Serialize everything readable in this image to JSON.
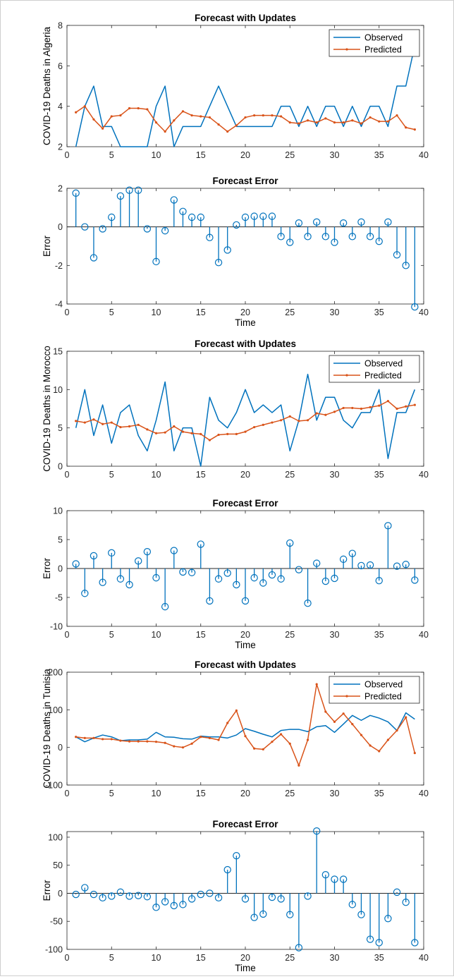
{
  "colors": {
    "observed": "#0072BD",
    "predicted": "#D95319",
    "error": "#0072BD",
    "axis": "#262626"
  },
  "chart_data": [
    {
      "type": "line",
      "title": "Forecast with Updates",
      "ylabel": "COVID-19 Deaths in Algeria",
      "xlabel": "",
      "xlim": [
        0,
        40
      ],
      "ylim": [
        2,
        8
      ],
      "xticks": [
        0,
        5,
        10,
        15,
        20,
        25,
        30,
        35,
        40
      ],
      "yticks": [
        2,
        4,
        6,
        8
      ],
      "legend_position": "top-right",
      "x": [
        1,
        2,
        3,
        4,
        5,
        6,
        7,
        8,
        9,
        10,
        11,
        12,
        13,
        14,
        15,
        16,
        17,
        18,
        19,
        20,
        21,
        22,
        23,
        24,
        25,
        26,
        27,
        28,
        29,
        30,
        31,
        32,
        33,
        34,
        35,
        36,
        37,
        38,
        39
      ],
      "series": [
        {
          "name": "Observed",
          "values": [
            2,
            4,
            5,
            3,
            3,
            2,
            2,
            2,
            2,
            4,
            5,
            2,
            3,
            3,
            3,
            4,
            5,
            4,
            3,
            3,
            3,
            3,
            3,
            4,
            4,
            3,
            4,
            3,
            4,
            4,
            3,
            4,
            3,
            4,
            4,
            3,
            5,
            5,
            7
          ]
        },
        {
          "name": "Predicted",
          "values": [
            3.7,
            4.0,
            3.35,
            2.9,
            3.5,
            3.55,
            3.9,
            3.9,
            3.85,
            3.2,
            2.75,
            3.3,
            3.75,
            3.55,
            3.5,
            3.45,
            3.1,
            2.75,
            3.05,
            3.45,
            3.55,
            3.55,
            3.55,
            3.5,
            3.2,
            3.15,
            3.3,
            3.2,
            3.4,
            3.2,
            3.2,
            3.3,
            3.15,
            3.45,
            3.25,
            3.25,
            3.55,
            2.95,
            2.85
          ]
        }
      ]
    },
    {
      "type": "stem",
      "title": "Forecast Error",
      "ylabel": "Error",
      "xlabel": "Time",
      "xlim": [
        0,
        40
      ],
      "ylim": [
        -4,
        2
      ],
      "xticks": [
        0,
        5,
        10,
        15,
        20,
        25,
        30,
        35,
        40
      ],
      "yticks": [
        -4,
        -2,
        0,
        2
      ],
      "x": [
        1,
        2,
        3,
        4,
        5,
        6,
        7,
        8,
        9,
        10,
        11,
        12,
        13,
        14,
        15,
        16,
        17,
        18,
        19,
        20,
        21,
        22,
        23,
        24,
        25,
        26,
        27,
        28,
        29,
        30,
        31,
        32,
        33,
        34,
        35,
        36,
        37,
        38,
        39
      ],
      "series": [
        {
          "values": [
            1.75,
            0,
            -1.6,
            -0.1,
            0.5,
            1.6,
            1.9,
            1.9,
            -0.1,
            -1.8,
            -0.2,
            1.4,
            0.8,
            0.5,
            0.5,
            -0.55,
            -1.85,
            -1.2,
            0.1,
            0.5,
            0.55,
            0.55,
            0.55,
            -0.5,
            -0.8,
            0.2,
            -0.5,
            0.25,
            -0.5,
            -0.8,
            0.2,
            -0.5,
            0.25,
            -0.5,
            -0.75,
            0.25,
            -1.45,
            -2.0,
            -4.15
          ]
        }
      ]
    },
    {
      "type": "line",
      "title": "Forecast with Updates",
      "ylabel": "COVID-19 Deaths in Morocco",
      "xlabel": "",
      "xlim": [
        0,
        40
      ],
      "ylim": [
        0,
        15
      ],
      "xticks": [
        0,
        5,
        10,
        15,
        20,
        25,
        30,
        35,
        40
      ],
      "yticks": [
        0,
        5,
        10,
        15
      ],
      "legend_position": "top-right",
      "x": [
        1,
        2,
        3,
        4,
        5,
        6,
        7,
        8,
        9,
        10,
        11,
        12,
        13,
        14,
        15,
        16,
        17,
        18,
        19,
        20,
        21,
        22,
        23,
        24,
        25,
        26,
        27,
        28,
        29,
        30,
        31,
        32,
        33,
        34,
        35,
        36,
        37,
        38,
        39
      ],
      "series": [
        {
          "name": "Observed",
          "values": [
            5,
            10,
            4,
            8,
            3,
            7,
            8,
            4,
            2,
            6,
            11,
            2,
            5,
            5,
            0,
            9,
            6,
            5,
            7,
            10,
            7,
            8,
            7,
            8,
            2,
            6,
            12,
            6,
            9,
            9,
            6,
            5,
            7,
            7,
            10,
            1,
            7,
            7,
            10
          ]
        },
        {
          "name": "Predicted",
          "values": [
            5.9,
            5.7,
            6.1,
            5.5,
            5.7,
            5.1,
            5.2,
            5.4,
            4.8,
            4.3,
            4.4,
            5.2,
            4.5,
            4.3,
            4.2,
            3.4,
            4.1,
            4.2,
            4.2,
            4.5,
            5.1,
            5.4,
            5.7,
            6.0,
            6.5,
            5.9,
            6.0,
            6.9,
            6.7,
            7.1,
            7.6,
            7.6,
            7.5,
            7.7,
            7.9,
            8.5,
            7.5,
            7.8,
            8.0
          ]
        }
      ]
    },
    {
      "type": "stem",
      "title": "Forecast Error",
      "ylabel": "Error",
      "xlabel": "Time",
      "xlim": [
        0,
        40
      ],
      "ylim": [
        -10,
        10
      ],
      "xticks": [
        0,
        5,
        10,
        15,
        20,
        25,
        30,
        35,
        40
      ],
      "yticks": [
        -10,
        -5,
        0,
        5,
        10
      ],
      "x": [
        1,
        2,
        3,
        4,
        5,
        6,
        7,
        8,
        9,
        10,
        11,
        12,
        13,
        14,
        15,
        16,
        17,
        18,
        19,
        20,
        21,
        22,
        23,
        24,
        25,
        26,
        27,
        28,
        29,
        30,
        31,
        32,
        33,
        34,
        35,
        36,
        37,
        38,
        39
      ],
      "series": [
        {
          "values": [
            0.8,
            -4.3,
            2.2,
            -2.4,
            2.7,
            -1.8,
            -2.8,
            1.3,
            2.9,
            -1.6,
            -6.6,
            3.1,
            -0.6,
            -0.7,
            4.2,
            -5.6,
            -1.8,
            -0.8,
            -2.8,
            -5.6,
            -1.6,
            -2.5,
            -1.1,
            -1.8,
            4.4,
            -0.2,
            -6.0,
            0.9,
            -2.2,
            -1.7,
            1.6,
            2.6,
            0.5,
            0.6,
            -2.1,
            7.4,
            0.4,
            0.7,
            -2.0
          ]
        }
      ]
    },
    {
      "type": "line",
      "title": "Forecast with Updates",
      "ylabel": "COVID-19 Deaths in Tunisia",
      "xlabel": "",
      "xlim": [
        0,
        40
      ],
      "ylim": [
        -100,
        200
      ],
      "xticks": [
        0,
        5,
        10,
        15,
        20,
        25,
        30,
        35,
        40
      ],
      "yticks": [
        -100,
        0,
        100,
        200
      ],
      "legend_position": "top-right",
      "x": [
        1,
        2,
        3,
        4,
        5,
        6,
        7,
        8,
        9,
        10,
        11,
        12,
        13,
        14,
        15,
        16,
        17,
        18,
        19,
        20,
        21,
        22,
        23,
        24,
        25,
        26,
        27,
        28,
        29,
        30,
        31,
        32,
        33,
        34,
        35,
        36,
        37,
        38,
        39
      ],
      "series": [
        {
          "name": "Observed",
          "values": [
            28,
            15,
            25,
            33,
            28,
            18,
            20,
            20,
            22,
            40,
            28,
            27,
            23,
            22,
            30,
            28,
            28,
            25,
            33,
            50,
            43,
            35,
            28,
            45,
            48,
            48,
            42,
            55,
            58,
            40,
            62,
            85,
            72,
            85,
            78,
            68,
            45,
            92,
            75
          ]
        },
        {
          "name": "Predicted",
          "values": [
            28,
            25,
            25,
            22,
            22,
            18,
            16,
            16,
            16,
            15,
            12,
            3,
            0,
            10,
            28,
            25,
            20,
            65,
            98,
            30,
            -3,
            -5,
            15,
            35,
            10,
            -48,
            20,
            168,
            95,
            68,
            90,
            62,
            33,
            5,
            -10,
            20,
            45,
            80,
            -15
          ]
        }
      ]
    },
    {
      "type": "stem",
      "title": "Forecast Error",
      "ylabel": "Error",
      "xlabel": "Time",
      "xlim": [
        0,
        40
      ],
      "ylim": [
        -100,
        110
      ],
      "xticks": [
        0,
        5,
        10,
        15,
        20,
        25,
        30,
        35,
        40
      ],
      "yticks": [
        -100,
        -50,
        0,
        50,
        100
      ],
      "x": [
        1,
        2,
        3,
        4,
        5,
        6,
        7,
        8,
        9,
        10,
        11,
        12,
        13,
        14,
        15,
        16,
        17,
        18,
        19,
        20,
        21,
        22,
        23,
        24,
        25,
        26,
        27,
        28,
        29,
        30,
        31,
        32,
        33,
        34,
        35,
        36,
        37,
        38,
        39
      ],
      "series": [
        {
          "values": [
            -2,
            10,
            -2,
            -8,
            -5,
            2,
            -5,
            -4,
            -6,
            -25,
            -15,
            -22,
            -20,
            -10,
            -2,
            0,
            -8,
            42,
            67,
            -10,
            -43,
            -37,
            -7,
            -10,
            -38,
            -97,
            -5,
            111,
            33,
            25,
            25,
            -20,
            -38,
            -82,
            -88,
            -45,
            2,
            -16,
            -88
          ]
        }
      ]
    }
  ]
}
